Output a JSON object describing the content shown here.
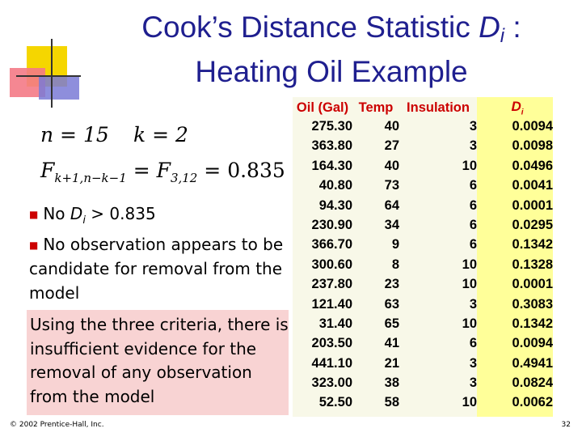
{
  "title": {
    "line1_prefix": "Cook’s Distance Statistic ",
    "line1_var": "D",
    "line1_sub": "i",
    "line1_suffix": " :",
    "line2": "Heating Oil Example"
  },
  "formulas": {
    "n_expr": "n = 15",
    "k_expr": "k = 2",
    "f_left": "F",
    "f_left_sub": "k+1,n−k−1",
    "f_mid": " = F",
    "f_mid_sub": "3,12",
    "f_right": " = 0.835"
  },
  "bullets": {
    "item1_prefix": "No ",
    "item1_var": "D",
    "item1_sub": "i",
    "item1_suffix": " > 0.835",
    "item2": "No observation appears to be candidate for removal from the model"
  },
  "conclusion": "Using the three criteria, there is insufficient evidence for the removal of any observation from the model",
  "footer": "© 2002 Prentice-Hall, Inc.",
  "page_number": "32",
  "colors": {
    "title": "#1f1f8f",
    "header": "#cc0000",
    "bullet": "#cc0000",
    "conclusion_bg": "#f8d3d3",
    "d_column_bg": "#ffff99"
  },
  "table": {
    "headers": [
      "Oil (Gal)",
      "Temp",
      "Insulation",
      "D",
      "i"
    ],
    "rows": [
      [
        "275.30",
        "40",
        "3",
        "0.0094"
      ],
      [
        "363.80",
        "27",
        "3",
        "0.0098"
      ],
      [
        "164.30",
        "40",
        "10",
        "0.0496"
      ],
      [
        "40.80",
        "73",
        "6",
        "0.0041"
      ],
      [
        "94.30",
        "64",
        "6",
        "0.0001"
      ],
      [
        "230.90",
        "34",
        "6",
        "0.0295"
      ],
      [
        "366.70",
        "9",
        "6",
        "0.1342"
      ],
      [
        "300.60",
        "8",
        "10",
        "0.1328"
      ],
      [
        "237.80",
        "23",
        "10",
        "0.0001"
      ],
      [
        "121.40",
        "63",
        "3",
        "0.3083"
      ],
      [
        "31.40",
        "65",
        "10",
        "0.1342"
      ],
      [
        "203.50",
        "41",
        "6",
        "0.0094"
      ],
      [
        "441.10",
        "21",
        "3",
        "0.4941"
      ],
      [
        "323.00",
        "38",
        "3",
        "0.0824"
      ],
      [
        "52.50",
        "58",
        "10",
        "0.0062"
      ]
    ]
  }
}
